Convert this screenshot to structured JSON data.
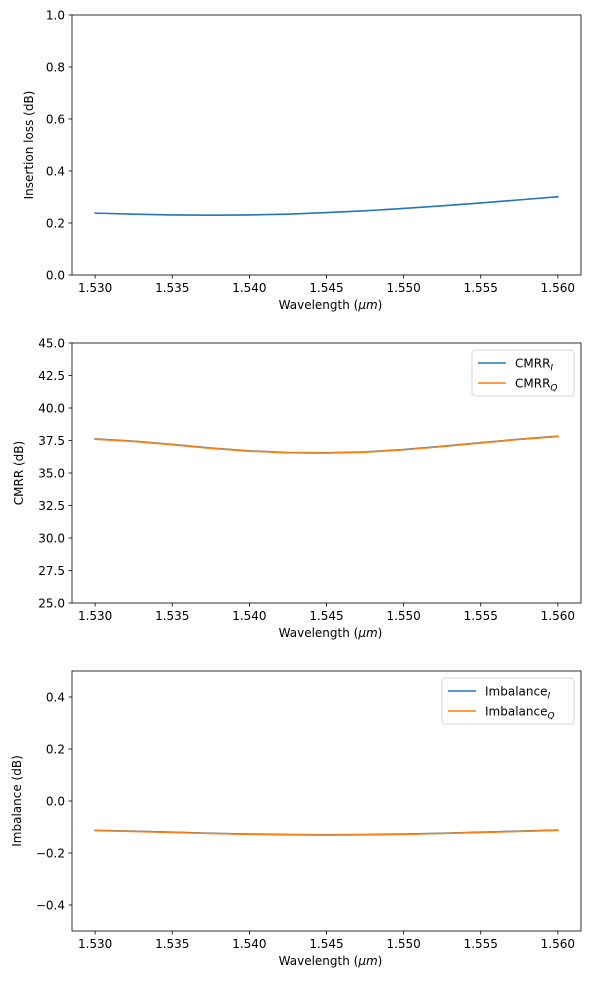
{
  "chart_data": [
    {
      "type": "line",
      "xlabel_main": "Wavelength (",
      "xlabel_unit": "μm",
      "xlabel_close": ")",
      "ylabel": "Insertion loss (dB)",
      "xlim": [
        1.5285,
        1.5615
      ],
      "ylim": [
        0,
        1.0
      ],
      "xticks": [
        "1.530",
        "1.535",
        "1.540",
        "1.545",
        "1.550",
        "1.555",
        "1.560"
      ],
      "xtick_values": [
        1.53,
        1.535,
        1.54,
        1.545,
        1.55,
        1.555,
        1.56
      ],
      "yticks": [
        "0.0",
        "0.2",
        "0.4",
        "0.6",
        "0.8",
        "1.0"
      ],
      "ytick_values": [
        0,
        0.2,
        0.4,
        0.6,
        0.8,
        1.0
      ],
      "legend": null,
      "series": [
        {
          "color": "#1f77b4",
          "x": [
            1.53,
            1.5325,
            1.535,
            1.5375,
            1.54,
            1.5425,
            1.545,
            1.5475,
            1.55,
            1.5525,
            1.555,
            1.5575,
            1.56
          ],
          "y": [
            0.238,
            0.234,
            0.231,
            0.23,
            0.231,
            0.234,
            0.24,
            0.247,
            0.256,
            0.266,
            0.277,
            0.289,
            0.301
          ]
        }
      ]
    },
    {
      "type": "line",
      "xlabel_main": "Wavelength (",
      "xlabel_unit": "μm",
      "xlabel_close": ")",
      "ylabel": "CMRR (dB)",
      "xlim": [
        1.5285,
        1.5615
      ],
      "ylim": [
        25,
        45
      ],
      "xticks": [
        "1.530",
        "1.535",
        "1.540",
        "1.545",
        "1.550",
        "1.555",
        "1.560"
      ],
      "xtick_values": [
        1.53,
        1.535,
        1.54,
        1.545,
        1.55,
        1.555,
        1.56
      ],
      "yticks": [
        "25.0",
        "27.5",
        "30.0",
        "32.5",
        "35.0",
        "37.5",
        "40.0",
        "42.5",
        "45.0"
      ],
      "ytick_values": [
        25,
        27.5,
        30,
        32.5,
        35,
        37.5,
        40,
        42.5,
        45
      ],
      "legend": "upper right",
      "series": [
        {
          "name_main": "CMRR",
          "name_sub": "I",
          "color": "#1f77b4",
          "x": [
            1.53,
            1.5325,
            1.535,
            1.5375,
            1.54,
            1.5425,
            1.545,
            1.5475,
            1.55,
            1.5525,
            1.555,
            1.5575,
            1.56
          ],
          "y": [
            37.62,
            37.45,
            37.2,
            36.92,
            36.7,
            36.57,
            36.55,
            36.62,
            36.8,
            37.05,
            37.33,
            37.6,
            37.83
          ]
        },
        {
          "name_main": "CMRR",
          "name_sub": "Q",
          "color": "#ff7f0e",
          "x": [
            1.53,
            1.5325,
            1.535,
            1.5375,
            1.54,
            1.5425,
            1.545,
            1.5475,
            1.55,
            1.5525,
            1.555,
            1.5575,
            1.56
          ],
          "y": [
            37.6,
            37.43,
            37.18,
            36.9,
            36.68,
            36.55,
            36.53,
            36.6,
            36.78,
            37.03,
            37.31,
            37.58,
            37.81
          ]
        }
      ]
    },
    {
      "type": "line",
      "xlabel_main": "Wavelength (",
      "xlabel_unit": "μm",
      "xlabel_close": ")",
      "ylabel": "Imbalance (dB)",
      "xlim": [
        1.5285,
        1.5615
      ],
      "ylim": [
        -0.5,
        0.5
      ],
      "xticks": [
        "1.530",
        "1.535",
        "1.540",
        "1.545",
        "1.550",
        "1.555",
        "1.560"
      ],
      "xtick_values": [
        1.53,
        1.535,
        1.54,
        1.545,
        1.55,
        1.555,
        1.56
      ],
      "yticks": [
        "−0.4",
        "−0.2",
        "0.0",
        "0.2",
        "0.4"
      ],
      "ytick_values": [
        -0.4,
        -0.2,
        0,
        0.2,
        0.4
      ],
      "legend": "upper right",
      "series": [
        {
          "name_main": "Imbalance",
          "name_sub": "I",
          "color": "#1f77b4",
          "x": [
            1.53,
            1.5325,
            1.535,
            1.5375,
            1.54,
            1.5425,
            1.545,
            1.5475,
            1.55,
            1.5525,
            1.555,
            1.5575,
            1.56
          ],
          "y": [
            -0.113,
            -0.116,
            -0.12,
            -0.124,
            -0.127,
            -0.129,
            -0.13,
            -0.129,
            -0.127,
            -0.124,
            -0.12,
            -0.116,
            -0.112
          ]
        },
        {
          "name_main": "Imbalance",
          "name_sub": "Q",
          "color": "#ff7f0e",
          "x": [
            1.53,
            1.5325,
            1.535,
            1.5375,
            1.54,
            1.5425,
            1.545,
            1.5475,
            1.55,
            1.5525,
            1.555,
            1.5575,
            1.56
          ],
          "y": [
            -0.114,
            -0.117,
            -0.121,
            -0.125,
            -0.128,
            -0.13,
            -0.131,
            -0.13,
            -0.128,
            -0.125,
            -0.121,
            -0.117,
            -0.113
          ]
        }
      ]
    }
  ]
}
